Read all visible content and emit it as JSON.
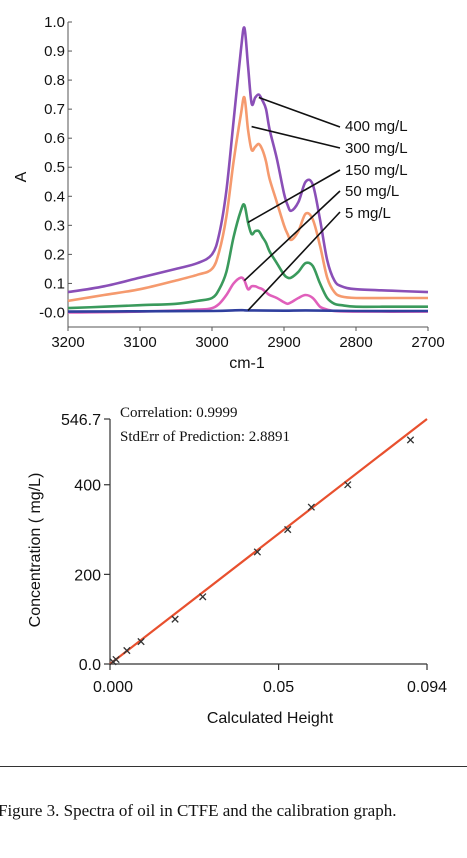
{
  "chart_data": [
    {
      "type": "line",
      "ylabel": "A",
      "xlabel": "cm-1",
      "xlim": [
        3200,
        2700
      ],
      "ylim": [
        -0.05,
        1.0
      ],
      "x_ticks": [
        "3200",
        "3100",
        "3000",
        "2900",
        "2800",
        "2700"
      ],
      "x_tick_values": [
        3200,
        3100,
        3000,
        2900,
        2800,
        2700
      ],
      "y_ticks": [
        "1.0",
        "0.9",
        "0.8",
        "0.7",
        "0.6",
        "0.5",
        "0.4",
        "0.3",
        "0.2",
        "0.1",
        "-0.0"
      ],
      "y_tick_values": [
        1.0,
        0.9,
        0.8,
        0.7,
        0.6,
        0.5,
        0.4,
        0.3,
        0.2,
        0.1,
        0.0
      ],
      "series": [
        {
          "name": "400 mg/L",
          "color": "#8a4fb7",
          "x": [
            3200,
            3150,
            3100,
            3050,
            3020,
            3000,
            2990,
            2980,
            2970,
            2960,
            2955,
            2950,
            2945,
            2940,
            2935,
            2930,
            2925,
            2920,
            2910,
            2900,
            2895,
            2890,
            2880,
            2870,
            2860,
            2850,
            2840,
            2830,
            2820,
            2800,
            2750,
            2700
          ],
          "y": [
            0.07,
            0.09,
            0.12,
            0.15,
            0.17,
            0.2,
            0.27,
            0.42,
            0.66,
            0.9,
            0.98,
            0.85,
            0.72,
            0.74,
            0.75,
            0.73,
            0.7,
            0.63,
            0.53,
            0.41,
            0.37,
            0.35,
            0.38,
            0.45,
            0.44,
            0.32,
            0.18,
            0.11,
            0.09,
            0.08,
            0.075,
            0.07
          ]
        },
        {
          "name": "300 mg/L",
          "color": "#f59a6e",
          "x": [
            3200,
            3150,
            3100,
            3050,
            3020,
            3000,
            2990,
            2980,
            2970,
            2960,
            2955,
            2950,
            2945,
            2940,
            2935,
            2930,
            2925,
            2920,
            2910,
            2900,
            2895,
            2890,
            2880,
            2870,
            2860,
            2850,
            2840,
            2830,
            2820,
            2800,
            2750,
            2700
          ],
          "y": [
            0.04,
            0.06,
            0.08,
            0.11,
            0.13,
            0.15,
            0.21,
            0.33,
            0.52,
            0.68,
            0.74,
            0.63,
            0.56,
            0.57,
            0.58,
            0.56,
            0.52,
            0.46,
            0.38,
            0.3,
            0.27,
            0.25,
            0.28,
            0.34,
            0.32,
            0.23,
            0.12,
            0.07,
            0.055,
            0.05,
            0.05,
            0.05
          ]
        },
        {
          "name": "150 mg/L",
          "color": "#3a9a5c",
          "x": [
            3200,
            3150,
            3100,
            3050,
            3020,
            3000,
            2990,
            2980,
            2970,
            2960,
            2955,
            2950,
            2945,
            2940,
            2935,
            2930,
            2925,
            2920,
            2910,
            2900,
            2895,
            2890,
            2880,
            2870,
            2860,
            2850,
            2840,
            2830,
            2820,
            2800,
            2750,
            2700
          ],
          "y": [
            0.015,
            0.02,
            0.025,
            0.03,
            0.04,
            0.05,
            0.08,
            0.14,
            0.26,
            0.35,
            0.37,
            0.31,
            0.27,
            0.28,
            0.28,
            0.26,
            0.24,
            0.21,
            0.17,
            0.13,
            0.12,
            0.12,
            0.14,
            0.17,
            0.16,
            0.1,
            0.05,
            0.03,
            0.025,
            0.02,
            0.02,
            0.02
          ]
        },
        {
          "name": "50 mg/L",
          "color": "#e05fbb",
          "x": [
            3200,
            3100,
            3020,
            3000,
            2990,
            2980,
            2970,
            2960,
            2955,
            2950,
            2945,
            2940,
            2935,
            2930,
            2925,
            2920,
            2910,
            2900,
            2895,
            2890,
            2880,
            2870,
            2860,
            2850,
            2840,
            2830,
            2800,
            2700
          ],
          "y": [
            0.0,
            0.003,
            0.01,
            0.015,
            0.03,
            0.06,
            0.1,
            0.12,
            0.11,
            0.08,
            0.09,
            0.09,
            0.085,
            0.08,
            0.07,
            0.06,
            0.05,
            0.035,
            0.03,
            0.035,
            0.05,
            0.06,
            0.05,
            0.02,
            0.01,
            0.005,
            0.003,
            0.003
          ]
        },
        {
          "name": "5 mg/L",
          "color": "#2f3f9e",
          "x": [
            3200,
            3100,
            3000,
            2960,
            2950,
            2900,
            2870,
            2800,
            2700
          ],
          "y": [
            0.003,
            0.004,
            0.005,
            0.008,
            0.007,
            0.006,
            0.007,
            0.005,
            0.005
          ]
        }
      ],
      "labels": [
        "400 mg/L",
        "300 mg/L",
        "150 mg/L",
        "50 mg/L",
        "5 mg/L"
      ]
    },
    {
      "type": "scatter",
      "xlabel": "Calculated Height",
      "ylabel": "Concentration ( mg/L)",
      "xlim": [
        0.0,
        0.094
      ],
      "ylim": [
        0.0,
        546.7
      ],
      "x_ticks": [
        "0.000",
        "0.05",
        "0.094"
      ],
      "x_tick_values": [
        0.0,
        0.05,
        0.094
      ],
      "y_ticks": [
        "546.7",
        "400",
        "200",
        "0.0"
      ],
      "y_tick_values": [
        546.7,
        400,
        200,
        0.0
      ],
      "annotations": [
        "Correlation: 0.9999",
        "StdErr of Prediction: 2.8891"
      ],
      "points": {
        "x": [
          0.0009,
          0.0018,
          0.005,
          0.0092,
          0.0193,
          0.0275,
          0.0437,
          0.0527,
          0.0597,
          0.0705,
          0.0891
        ],
        "y": [
          5,
          10,
          30,
          50,
          100,
          150,
          250,
          300,
          350,
          400,
          500
        ],
        "marker": "x",
        "color": "#333333"
      },
      "fit_line": {
        "x": [
          0.0,
          0.094
        ],
        "y": [
          0.0,
          546.7
        ],
        "color": "#e8502e"
      }
    }
  ],
  "caption": "Figure 3.  Spectra of oil in CTFE and the calibration graph."
}
